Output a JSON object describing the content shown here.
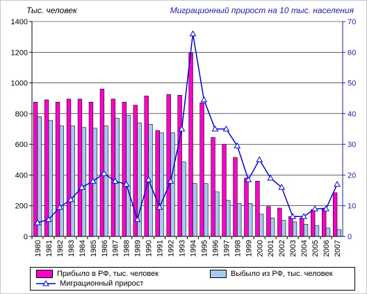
{
  "chart_data": {
    "type": "bar",
    "ylabel_left": "Тыс. человек",
    "ylabel_right": "Миграционный прирост на 10 тыс. населения",
    "categories": [
      "1980",
      "1981",
      "1982",
      "1983",
      "1984",
      "1985",
      "1986",
      "1987",
      "1988",
      "1989",
      "1990",
      "1991",
      "1992",
      "1993",
      "1994",
      "1995",
      "1996",
      "1997",
      "1998",
      "1999",
      "2000",
      "2001",
      "2002",
      "2003",
      "2004",
      "2005",
      "2006",
      "2007"
    ],
    "ylim_left": [
      0,
      1400
    ],
    "yticks_left": [
      "0",
      "200",
      "400",
      "600",
      "800",
      "1000",
      "1200",
      "1400"
    ],
    "ylim_right": [
      0,
      70
    ],
    "yticks_right": [
      "0",
      "10",
      "20",
      "30",
      "40",
      "50",
      "60",
      "70"
    ],
    "series": [
      {
        "name": "Прибыло в РФ, тыс. человек",
        "axis": "left",
        "color": "#ff00cc",
        "values": [
          875,
          890,
          875,
          895,
          895,
          875,
          960,
          895,
          875,
          855,
          915,
          690,
          925,
          920,
          1195,
          870,
          645,
          600,
          515,
          380,
          360,
          195,
          185,
          130,
          120,
          175,
          185,
          285
        ]
      },
      {
        "name": "Выбыло из РФ, тыс. человек",
        "axis": "left",
        "color": "#a6caf0",
        "values": [
          780,
          755,
          720,
          720,
          710,
          705,
          720,
          770,
          790,
          740,
          730,
          675,
          675,
          485,
          345,
          345,
          290,
          235,
          215,
          215,
          145,
          120,
          105,
          95,
          80,
          70,
          55,
          45
        ]
      },
      {
        "name": "Миграционный прирост",
        "axis": "right",
        "color": "#0000cc",
        "values": [
          4.5,
          5.5,
          9.5,
          12,
          16,
          18,
          20.5,
          18,
          17,
          5.5,
          18.5,
          9.5,
          18,
          35,
          66,
          44.5,
          35,
          35,
          29.5,
          18.5,
          25,
          19,
          16,
          6.5,
          6.5,
          9,
          9,
          17
        ]
      }
    ],
    "grid": true,
    "legend_position": "bottom"
  }
}
